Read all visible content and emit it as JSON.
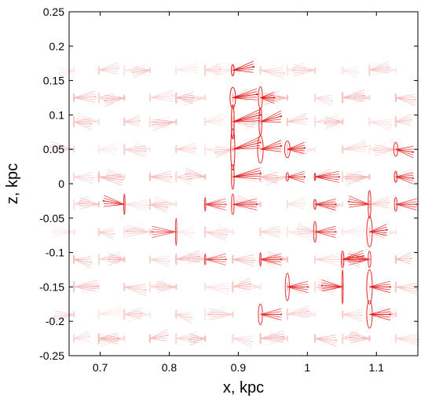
{
  "chart_data": {
    "type": "scatter",
    "title": "",
    "xlabel": "x, kpc",
    "ylabel": "z, kpc",
    "xlim": [
      0.655,
      1.16
    ],
    "ylim": [
      -0.25,
      0.25
    ],
    "xticks": [
      0.7,
      0.8,
      0.9,
      1.0,
      1.1
    ],
    "xtick_labels": [
      "0.7",
      "0.8",
      "0.9",
      "1",
      "1.1"
    ],
    "yticks": [
      -0.25,
      -0.2,
      -0.15,
      -0.1,
      -0.05,
      0,
      0.05,
      0.1,
      0.15,
      0.2,
      0.25
    ],
    "ytick_labels": [
      "-0.25",
      "-0.2",
      "-0.15",
      "-0.1",
      "-0.05",
      "0",
      "0.05",
      "0.1",
      "0.15",
      "0.2",
      "0.25"
    ],
    "grid": false,
    "legend": "none",
    "colors": {
      "mark": "#e00000",
      "axis": "#000000"
    },
    "glyph_columns_x": [
      0.662,
      0.698,
      0.735,
      0.772,
      0.81,
      0.852,
      0.892,
      0.932,
      0.971,
      1.011,
      1.051,
      1.09,
      1.128
    ],
    "glyph_rows_z": [
      0.165,
      0.125,
      0.09,
      0.05,
      0.01,
      -0.03,
      -0.07,
      -0.11,
      -0.15,
      -0.19,
      -0.225
    ],
    "strong_glyphs": [
      {
        "x": 0.892,
        "z": 0.165,
        "dx": 0.03,
        "dz": 0.005,
        "ex": 0.002,
        "ez": 0.008,
        "alpha": 0.9
      },
      {
        "x": 0.892,
        "z": 0.125,
        "dx": 0.035,
        "dz": 0.005,
        "ex": 0.004,
        "ez": 0.015,
        "alpha": 0.9
      },
      {
        "x": 0.932,
        "z": 0.125,
        "dx": 0.02,
        "dz": 0.0,
        "ex": 0.003,
        "ez": 0.016,
        "alpha": 0.85
      },
      {
        "x": 0.892,
        "z": 0.09,
        "dx": 0.04,
        "dz": 0.01,
        "ex": 0.002,
        "ez": 0.025,
        "alpha": 0.9
      },
      {
        "x": 0.932,
        "z": 0.09,
        "dx": 0.03,
        "dz": 0.008,
        "ex": 0.002,
        "ez": 0.02,
        "alpha": 0.85
      },
      {
        "x": 0.892,
        "z": 0.05,
        "dx": 0.04,
        "dz": 0.01,
        "ex": 0.003,
        "ez": 0.03,
        "alpha": 0.9
      },
      {
        "x": 0.932,
        "z": 0.05,
        "dx": 0.03,
        "dz": 0.005,
        "ex": 0.004,
        "ez": 0.02,
        "alpha": 0.85
      },
      {
        "x": 0.971,
        "z": 0.05,
        "dx": 0.025,
        "dz": 0.002,
        "ex": 0.004,
        "ez": 0.012,
        "alpha": 0.85
      },
      {
        "x": 1.128,
        "z": 0.05,
        "dx": 0.025,
        "dz": -0.004,
        "ex": 0.003,
        "ez": 0.01,
        "alpha": 0.85
      },
      {
        "x": 0.892,
        "z": 0.01,
        "dx": 0.04,
        "dz": 0.005,
        "ex": 0.002,
        "ez": 0.018,
        "alpha": 0.85
      },
      {
        "x": 0.971,
        "z": 0.01,
        "dx": 0.025,
        "dz": 0.0,
        "ex": 0.002,
        "ez": 0.006,
        "alpha": 0.8
      },
      {
        "x": 1.011,
        "z": 0.01,
        "dx": 0.035,
        "dz": 0.0,
        "ex": 0.001,
        "ez": 0.005,
        "alpha": 0.8
      },
      {
        "x": 1.128,
        "z": 0.01,
        "dx": 0.025,
        "dz": -0.002,
        "ex": 0.002,
        "ez": 0.008,
        "alpha": 0.8
      },
      {
        "x": 0.735,
        "z": -0.03,
        "dx": -0.03,
        "dz": 0.005,
        "ex": 0.001,
        "ez": 0.015,
        "alpha": 0.8
      },
      {
        "x": 0.852,
        "z": -0.03,
        "dx": 0.03,
        "dz": 0.0,
        "ex": 0.001,
        "ez": 0.01,
        "alpha": 0.7
      },
      {
        "x": 0.892,
        "z": -0.03,
        "dx": 0.035,
        "dz": 0.0,
        "ex": 0.002,
        "ez": 0.015,
        "alpha": 0.75
      },
      {
        "x": 1.011,
        "z": -0.03,
        "dx": 0.03,
        "dz": 0.0,
        "ex": 0.002,
        "ez": 0.007,
        "alpha": 0.75
      },
      {
        "x": 1.09,
        "z": -0.03,
        "dx": -0.03,
        "dz": 0.004,
        "ex": 0.002,
        "ez": 0.02,
        "alpha": 0.8
      },
      {
        "x": 1.128,
        "z": -0.03,
        "dx": 0.03,
        "dz": 0.0,
        "ex": 0.002,
        "ez": 0.01,
        "alpha": 0.75
      },
      {
        "x": 0.81,
        "z": -0.07,
        "dx": -0.035,
        "dz": 0.0,
        "ex": 0.001,
        "ez": 0.02,
        "alpha": 0.7
      },
      {
        "x": 1.011,
        "z": -0.07,
        "dx": 0.03,
        "dz": 0.0,
        "ex": 0.002,
        "ez": 0.015,
        "alpha": 0.8
      },
      {
        "x": 1.09,
        "z": -0.07,
        "dx": 0.025,
        "dz": 0.003,
        "ex": 0.004,
        "ez": 0.022,
        "alpha": 0.85
      },
      {
        "x": 0.852,
        "z": -0.11,
        "dx": 0.03,
        "dz": 0.0,
        "ex": 0.001,
        "ez": 0.008,
        "alpha": 0.7
      },
      {
        "x": 0.932,
        "z": -0.11,
        "dx": 0.03,
        "dz": 0.0,
        "ex": 0.001,
        "ez": 0.01,
        "alpha": 0.75
      },
      {
        "x": 1.051,
        "z": -0.11,
        "dx": 0.03,
        "dz": 0.005,
        "ex": 0.002,
        "ez": 0.012,
        "alpha": 0.8
      },
      {
        "x": 1.09,
        "z": -0.11,
        "dx": -0.03,
        "dz": 0.0,
        "ex": 0.002,
        "ez": 0.012,
        "alpha": 0.75
      },
      {
        "x": 0.971,
        "z": -0.15,
        "dx": 0.03,
        "dz": 0.0,
        "ex": 0.003,
        "ez": 0.02,
        "alpha": 0.8
      },
      {
        "x": 1.051,
        "z": -0.15,
        "dx": -0.03,
        "dz": 0.002,
        "ex": 0.001,
        "ez": 0.025,
        "alpha": 0.8
      },
      {
        "x": 1.09,
        "z": -0.15,
        "dx": 0.03,
        "dz": 0.0,
        "ex": 0.004,
        "ez": 0.025,
        "alpha": 0.85
      },
      {
        "x": 0.932,
        "z": -0.19,
        "dx": 0.03,
        "dz": 0.0,
        "ex": 0.003,
        "ez": 0.015,
        "alpha": 0.8
      },
      {
        "x": 1.09,
        "z": -0.19,
        "dx": 0.03,
        "dz": 0.0,
        "ex": 0.004,
        "ez": 0.02,
        "alpha": 0.85
      }
    ]
  }
}
